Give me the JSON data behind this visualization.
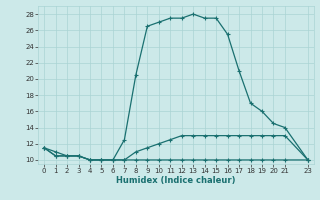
{
  "xlabel": "Humidex (Indice chaleur)",
  "xlim": [
    -0.5,
    23.5
  ],
  "ylim": [
    9.5,
    29
  ],
  "xticks": [
    0,
    1,
    2,
    3,
    4,
    5,
    6,
    7,
    8,
    9,
    10,
    11,
    12,
    13,
    14,
    15,
    16,
    17,
    18,
    19,
    20,
    21,
    23
  ],
  "yticks": [
    10,
    12,
    14,
    16,
    18,
    20,
    22,
    24,
    26,
    28
  ],
  "bg_color": "#cce9e9",
  "line_color": "#1a7070",
  "grid_color": "#aad4d4",
  "line1_x": [
    0,
    1,
    2,
    3,
    4,
    5,
    6,
    7,
    8,
    9,
    10,
    11,
    12,
    13,
    14,
    15,
    16,
    17,
    18,
    19,
    20,
    21,
    23
  ],
  "line1_y": [
    11.5,
    11,
    10.5,
    10.5,
    10,
    10,
    10,
    12.5,
    20.5,
    26.5,
    27,
    27.5,
    27.5,
    28,
    27.5,
    27.5,
    25.5,
    21,
    17,
    16,
    14.5,
    14,
    10
  ],
  "line2_x": [
    0,
    1,
    2,
    3,
    4,
    5,
    6,
    7,
    8,
    9,
    10,
    11,
    12,
    13,
    14,
    15,
    16,
    17,
    18,
    19,
    20,
    21,
    23
  ],
  "line2_y": [
    11.5,
    10.5,
    10.5,
    10.5,
    10,
    10,
    10,
    10,
    11,
    11.5,
    12,
    12.5,
    13,
    13,
    13,
    13,
    13,
    13,
    13,
    13,
    13,
    13,
    10
  ],
  "line3_x": [
    0,
    1,
    2,
    3,
    4,
    5,
    6,
    7,
    8,
    9,
    10,
    11,
    12,
    13,
    14,
    15,
    16,
    17,
    18,
    19,
    20,
    21,
    23
  ],
  "line3_y": [
    11.5,
    10.5,
    10.5,
    10.5,
    10,
    10,
    10,
    10,
    10,
    10,
    10,
    10,
    10,
    10,
    10,
    10,
    10,
    10,
    10,
    10,
    10,
    10,
    10
  ]
}
